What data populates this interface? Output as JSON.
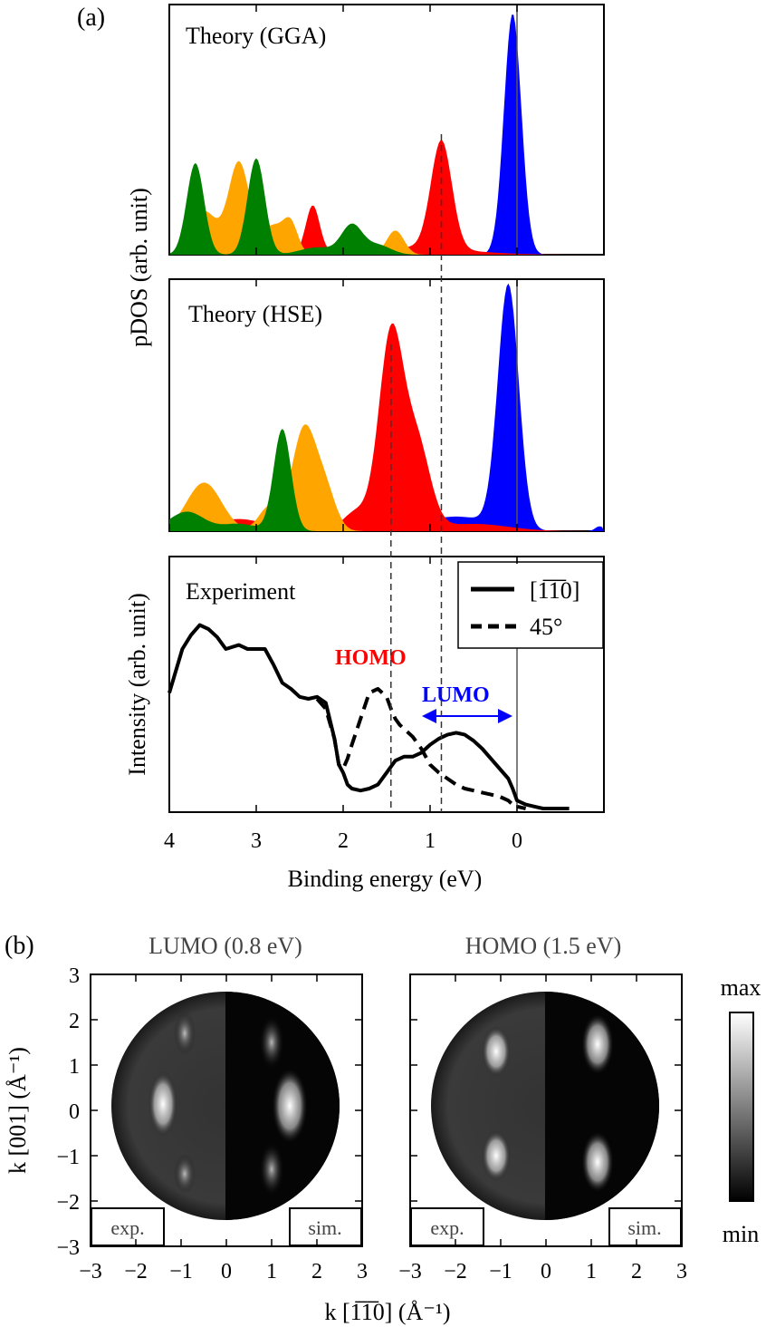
{
  "figure": {
    "panel_a_label": "(a)",
    "panel_b_label": "(b)"
  },
  "chart_data": [
    {
      "type": "area",
      "panel": "a-top",
      "title": "Theory (GGA)",
      "xlabel": "",
      "ylabel": "pDOS (arb. unit)",
      "xlim": [
        4,
        -1
      ],
      "x_reversed": true,
      "vline_solid": 0,
      "vline_dashed": [
        0.87
      ],
      "series": [
        {
          "color": "#0000ff",
          "peaks": [
            {
              "x": 0.05,
              "h": 1.0,
              "w": 0.1
            }
          ]
        },
        {
          "color": "#ff0000",
          "peaks": [
            {
              "x": 0.87,
              "h": 0.45,
              "w": 0.12
            },
            {
              "x": 2.35,
              "h": 0.2,
              "w": 0.08
            },
            {
              "x": 1.2,
              "h": 0.03,
              "w": 0.6
            }
          ]
        },
        {
          "color": "#ffa500",
          "peaks": [
            {
              "x": 3.2,
              "h": 0.38,
              "w": 0.12
            },
            {
              "x": 3.6,
              "h": 0.18,
              "w": 0.15
            },
            {
              "x": 2.8,
              "h": 0.12,
              "w": 0.15
            },
            {
              "x": 1.4,
              "h": 0.1,
              "w": 0.1
            },
            {
              "x": 2.6,
              "h": 0.1,
              "w": 0.08
            }
          ]
        },
        {
          "color": "#008000",
          "peaks": [
            {
              "x": 3.7,
              "h": 0.38,
              "w": 0.1
            },
            {
              "x": 3.0,
              "h": 0.4,
              "w": 0.1
            },
            {
              "x": 1.9,
              "h": 0.12,
              "w": 0.12
            },
            {
              "x": 2.3,
              "h": 0.03,
              "w": 0.2
            },
            {
              "x": 1.6,
              "h": 0.04,
              "w": 0.15
            }
          ]
        }
      ]
    },
    {
      "type": "area",
      "panel": "a-middle",
      "title": "Theory (HSE)",
      "xlim": [
        4,
        -1
      ],
      "x_reversed": true,
      "vline_solid": 0,
      "vline_dashed": [
        1.45,
        0.87
      ],
      "series": [
        {
          "color": "#0000ff",
          "peaks": [
            {
              "x": 0.1,
              "h": 1.0,
              "w": 0.12
            },
            {
              "x": 0.7,
              "h": 0.06,
              "w": 0.4
            },
            {
              "x": -0.95,
              "h": 0.02,
              "w": 0.05
            }
          ]
        },
        {
          "color": "#ff0000",
          "peaks": [
            {
              "x": 1.45,
              "h": 0.8,
              "w": 0.14
            },
            {
              "x": 1.15,
              "h": 0.35,
              "w": 0.15
            },
            {
              "x": 1.85,
              "h": 0.08,
              "w": 0.15
            },
            {
              "x": 3.2,
              "h": 0.05,
              "w": 0.3
            },
            {
              "x": 0.5,
              "h": 0.03,
              "w": 0.4
            }
          ]
        },
        {
          "color": "#ffa500",
          "peaks": [
            {
              "x": 3.6,
              "h": 0.2,
              "w": 0.2
            },
            {
              "x": 2.45,
              "h": 0.42,
              "w": 0.14
            },
            {
              "x": 2.2,
              "h": 0.15,
              "w": 0.12
            },
            {
              "x": 2.85,
              "h": 0.1,
              "w": 0.12
            }
          ]
        },
        {
          "color": "#008000",
          "peaks": [
            {
              "x": 2.7,
              "h": 0.42,
              "w": 0.1
            },
            {
              "x": 3.8,
              "h": 0.08,
              "w": 0.2
            },
            {
              "x": 3.2,
              "h": 0.03,
              "w": 0.2
            }
          ]
        }
      ]
    },
    {
      "type": "line",
      "panel": "a-bottom",
      "title": "Experiment",
      "xlabel": "Binding energy (eV)",
      "ylabel": "Intensity (arb. unit)",
      "xlim": [
        4,
        -1
      ],
      "ylim": [
        0,
        1
      ],
      "x_ticks": [
        4,
        3,
        2,
        1,
        0
      ],
      "vline_solid": 0,
      "vline_dashed": [
        1.45,
        0.87
      ],
      "legend": {
        "position": "top-right",
        "entries": [
          "[1̅1̅0]",
          "45°"
        ]
      },
      "annotations": {
        "homo": "HOMO",
        "lumo": "LUMO"
      },
      "series": [
        {
          "style": "solid",
          "x": [
            4.0,
            3.85,
            3.75,
            3.65,
            3.55,
            3.45,
            3.35,
            3.2,
            3.1,
            3.0,
            2.9,
            2.8,
            2.7,
            2.6,
            2.5,
            2.4,
            2.3,
            2.2,
            2.1,
            2.05,
            2.0,
            1.95,
            1.9,
            1.8,
            1.7,
            1.6,
            1.5,
            1.4,
            1.3,
            1.2,
            1.1,
            1.0,
            0.9,
            0.8,
            0.7,
            0.6,
            0.5,
            0.4,
            0.3,
            0.2,
            0.1,
            0.05,
            0.0,
            -0.1,
            -0.2,
            -0.3,
            -0.4,
            -0.5,
            -0.6
          ],
          "y": [
            0.58,
            0.8,
            0.87,
            0.92,
            0.9,
            0.86,
            0.8,
            0.82,
            0.8,
            0.8,
            0.8,
            0.72,
            0.63,
            0.6,
            0.56,
            0.55,
            0.56,
            0.53,
            0.35,
            0.22,
            0.18,
            0.12,
            0.1,
            0.09,
            0.1,
            0.12,
            0.18,
            0.24,
            0.26,
            0.26,
            0.28,
            0.32,
            0.35,
            0.37,
            0.38,
            0.37,
            0.34,
            0.3,
            0.25,
            0.2,
            0.15,
            0.1,
            0.04,
            0.02,
            0.01,
            0.0,
            0.0,
            0.0,
            0.0
          ]
        },
        {
          "style": "dashed",
          "x": [
            2.3,
            2.2,
            2.1,
            2.05,
            2.0,
            1.95,
            1.9,
            1.8,
            1.7,
            1.6,
            1.5,
            1.45,
            1.4,
            1.35,
            1.3,
            1.2,
            1.1,
            1.0,
            0.9,
            0.8,
            0.7,
            0.6,
            0.5,
            0.4,
            0.3,
            0.2,
            0.1,
            0.05,
            0.0,
            -0.1
          ],
          "y": [
            0.55,
            0.5,
            0.35,
            0.22,
            0.2,
            0.25,
            0.32,
            0.45,
            0.58,
            0.6,
            0.56,
            0.5,
            0.45,
            0.42,
            0.4,
            0.36,
            0.3,
            0.22,
            0.18,
            0.15,
            0.12,
            0.1,
            0.09,
            0.08,
            0.07,
            0.06,
            0.04,
            0.02,
            0.01,
            0.0
          ]
        }
      ]
    },
    {
      "type": "heatmap",
      "panel": "b-left",
      "title": "LUMO (0.8 eV)",
      "xlabel": "",
      "ylabel": "k [001] (Å⁻¹)",
      "xlim": [
        -3,
        3
      ],
      "ylim": [
        -3,
        3
      ],
      "x_ticks": [
        -3,
        -2,
        -1,
        0,
        1,
        2,
        3
      ],
      "y_ticks": [
        3,
        2,
        1,
        0,
        -1,
        -2,
        -3
      ],
      "labels": {
        "left": "exp.",
        "right": "sim."
      }
    },
    {
      "type": "heatmap",
      "panel": "b-right",
      "title": "HOMO (1.5 eV)",
      "xlim": [
        -3,
        3
      ],
      "ylim": [
        -3,
        3
      ],
      "x_ticks": [
        -3,
        -2,
        -1,
        0,
        1,
        2,
        3
      ],
      "labels": {
        "left": "exp.",
        "right": "sim."
      },
      "colorbar": {
        "max": "max",
        "min": "min"
      }
    }
  ],
  "panel_b_xlabel": "k [1̅1̅0] (Å⁻¹)"
}
